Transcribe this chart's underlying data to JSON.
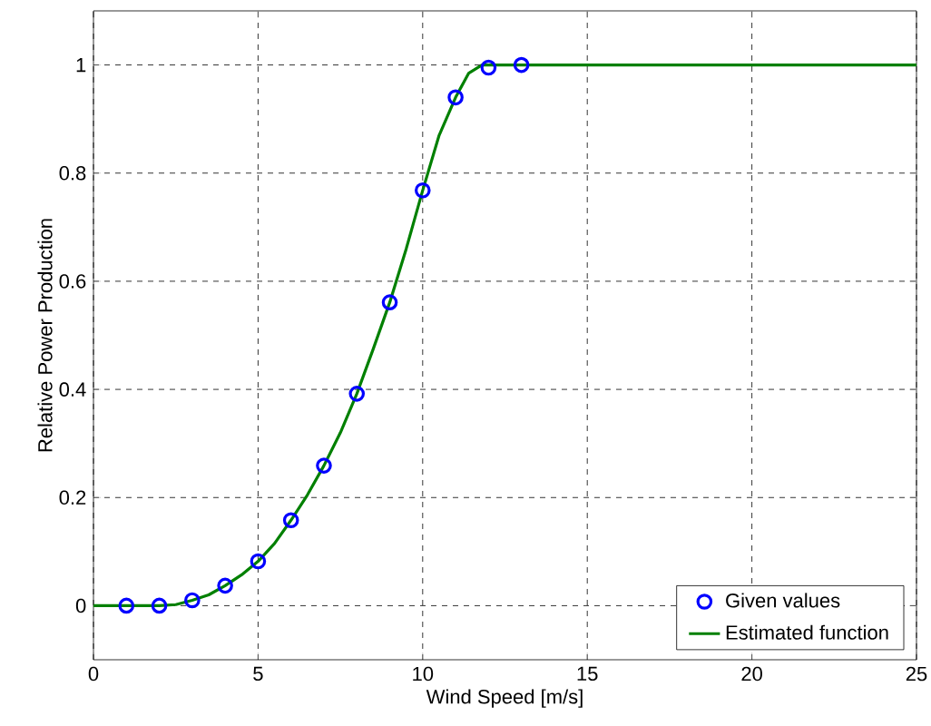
{
  "chart_data": {
    "type": "line",
    "xlabel": "Wind Speed [m/s]",
    "ylabel": "Relative Power Production",
    "xlim": [
      0,
      25
    ],
    "ylim": [
      -0.1,
      1.1
    ],
    "xticks": [
      0,
      5,
      10,
      15,
      20,
      25
    ],
    "yticks": [
      0,
      0.2,
      0.4,
      0.6,
      0.8,
      1
    ],
    "grid": true,
    "legend": "bottom right",
    "line_style": "solid",
    "series": [
      {
        "name": "Given values",
        "type": "scatter",
        "marker": "circle",
        "color": "#0000ff",
        "x": [
          1,
          2,
          3,
          4,
          5,
          6,
          7,
          8,
          9,
          10,
          11,
          12,
          13
        ],
        "values": [
          0,
          0,
          0.01,
          0.037,
          0.082,
          0.158,
          0.259,
          0.392,
          0.561,
          0.768,
          0.94,
          0.995,
          1.0
        ]
      },
      {
        "name": "Estimated function",
        "marker": "none",
        "color": "#008000",
        "x": [
          0,
          1,
          2,
          2.5,
          3,
          3.5,
          4,
          4.5,
          5,
          5.5,
          6,
          6.5,
          7,
          7.5,
          8,
          8.5,
          9,
          9.5,
          10,
          10.5,
          11,
          11.4,
          11.8,
          25
        ],
        "values": [
          0,
          0,
          0,
          0.002,
          0.01,
          0.02,
          0.037,
          0.057,
          0.082,
          0.115,
          0.158,
          0.205,
          0.259,
          0.32,
          0.392,
          0.475,
          0.561,
          0.66,
          0.768,
          0.87,
          0.94,
          0.985,
          1.0,
          1.0
        ]
      }
    ]
  }
}
